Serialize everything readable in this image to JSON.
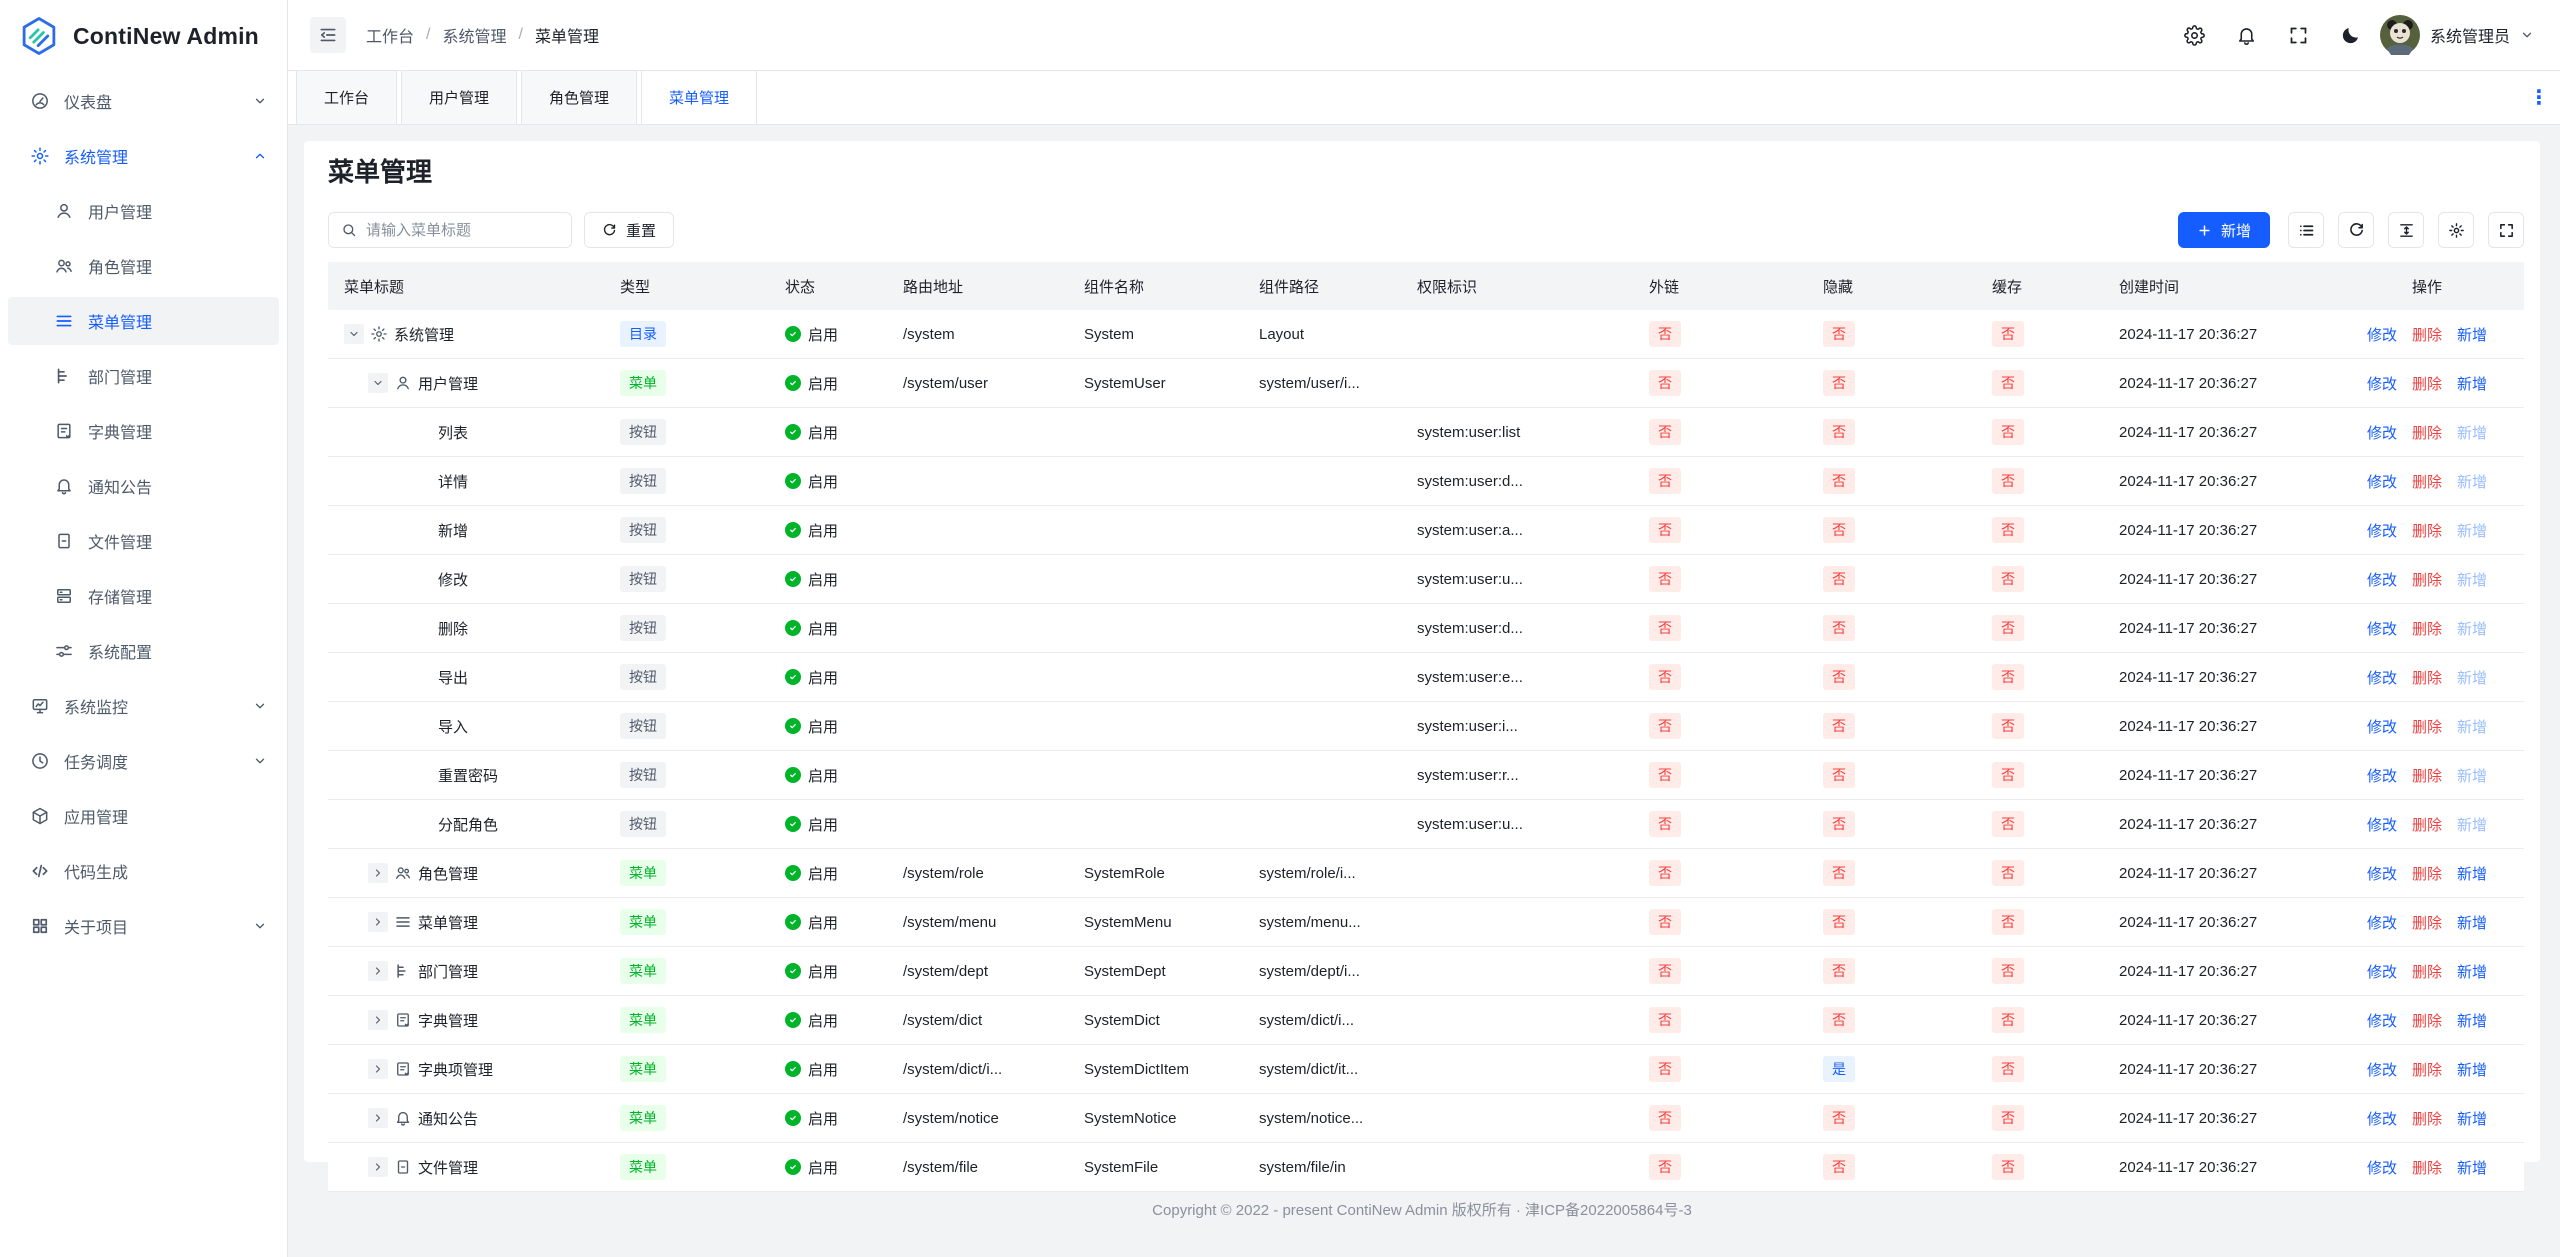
{
  "colors": {
    "primary": "#165dff",
    "danger": "#f53f3f",
    "success": "#00b42a"
  },
  "app": {
    "title": "ContiNew Admin",
    "logo_icon": "hexagon-logo-icon"
  },
  "sidebar": {
    "items": [
      {
        "label": "仪表盘",
        "icon": "dashboard-icon",
        "level": "top",
        "chevron": "down"
      },
      {
        "label": "系统管理",
        "icon": "gear-icon",
        "level": "top",
        "chevron": "up",
        "active": true
      },
      {
        "label": "用户管理",
        "icon": "user-icon",
        "level": "sub"
      },
      {
        "label": "角色管理",
        "icon": "users-icon",
        "level": "sub"
      },
      {
        "label": "菜单管理",
        "icon": "menu-list-icon",
        "level": "sub",
        "selected": true
      },
      {
        "label": "部门管理",
        "icon": "tree-icon",
        "level": "sub"
      },
      {
        "label": "字典管理",
        "icon": "dict-icon",
        "level": "sub"
      },
      {
        "label": "通知公告",
        "icon": "bell-icon",
        "level": "sub"
      },
      {
        "label": "文件管理",
        "icon": "file-icon",
        "level": "sub"
      },
      {
        "label": "存储管理",
        "icon": "storage-icon",
        "level": "sub"
      },
      {
        "label": "系统配置",
        "icon": "sliders-icon",
        "level": "sub"
      },
      {
        "label": "系统监控",
        "icon": "monitor-icon",
        "level": "top",
        "chevron": "down"
      },
      {
        "label": "任务调度",
        "icon": "clock-icon",
        "level": "top",
        "chevron": "down"
      },
      {
        "label": "应用管理",
        "icon": "cube-icon",
        "level": "top"
      },
      {
        "label": "代码生成",
        "icon": "code-icon",
        "level": "top"
      },
      {
        "label": "关于项目",
        "icon": "apps-icon",
        "level": "top",
        "chevron": "down"
      }
    ]
  },
  "header": {
    "breadcrumb": [
      "工作台",
      "系统管理",
      "菜单管理"
    ],
    "breadcrumb_separator": "/",
    "icons": [
      "settings-icon",
      "notification-bell-icon",
      "fullscreen-icon",
      "dark-mode-moon-icon"
    ],
    "user_name": "系统管理员"
  },
  "tabbar": {
    "tabs": [
      {
        "label": "工作台"
      },
      {
        "label": "用户管理"
      },
      {
        "label": "角色管理"
      },
      {
        "label": "菜单管理",
        "active": true
      }
    ],
    "more_icon": "⋮"
  },
  "page": {
    "title": "菜单管理",
    "search_placeholder": "请输入菜单标题",
    "reset_label": "重置",
    "add_label": "新增",
    "tool_icons": [
      "list-icon",
      "refresh-icon",
      "row-height-icon",
      "settings-icon",
      "fullscreen-icon"
    ]
  },
  "table": {
    "columns": [
      "菜单标题",
      "类型",
      "状态",
      "路由地址",
      "组件名称",
      "组件路径",
      "权限标识",
      "外链",
      "隐藏",
      "缓存",
      "创建时间",
      "操作"
    ],
    "status_label": "启用",
    "action_labels": [
      "修改",
      "删除",
      "新增"
    ],
    "rows": [
      {
        "title": "系统管理",
        "icon": "gear-icon",
        "level": 0,
        "expand": "down",
        "type": "目录",
        "route": "/system",
        "component_name": "System",
        "component_path": "Layout",
        "permission": "",
        "external": "否",
        "hidden": "否",
        "cache": "否",
        "created": "2024-11-17 20:36:27",
        "add_disabled": false
      },
      {
        "title": "用户管理",
        "icon": "user-icon",
        "level": 1,
        "expand": "down",
        "type": "菜单",
        "route": "/system/user",
        "component_name": "SystemUser",
        "component_path": "system/user/i...",
        "permission": "",
        "external": "否",
        "hidden": "否",
        "cache": "否",
        "created": "2024-11-17 20:36:27",
        "add_disabled": false
      },
      {
        "title": "列表",
        "icon": "",
        "level": 2,
        "expand": "",
        "type": "按钮",
        "route": "",
        "component_name": "",
        "component_path": "",
        "permission": "system:user:list",
        "external": "否",
        "hidden": "否",
        "cache": "否",
        "created": "2024-11-17 20:36:27",
        "add_disabled": true
      },
      {
        "title": "详情",
        "icon": "",
        "level": 2,
        "expand": "",
        "type": "按钮",
        "route": "",
        "component_name": "",
        "component_path": "",
        "permission": "system:user:d...",
        "external": "否",
        "hidden": "否",
        "cache": "否",
        "created": "2024-11-17 20:36:27",
        "add_disabled": true
      },
      {
        "title": "新增",
        "icon": "",
        "level": 2,
        "expand": "",
        "type": "按钮",
        "route": "",
        "component_name": "",
        "component_path": "",
        "permission": "system:user:a...",
        "external": "否",
        "hidden": "否",
        "cache": "否",
        "created": "2024-11-17 20:36:27",
        "add_disabled": true
      },
      {
        "title": "修改",
        "icon": "",
        "level": 2,
        "expand": "",
        "type": "按钮",
        "route": "",
        "component_name": "",
        "component_path": "",
        "permission": "system:user:u...",
        "external": "否",
        "hidden": "否",
        "cache": "否",
        "created": "2024-11-17 20:36:27",
        "add_disabled": true
      },
      {
        "title": "删除",
        "icon": "",
        "level": 2,
        "expand": "",
        "type": "按钮",
        "route": "",
        "component_name": "",
        "component_path": "",
        "permission": "system:user:d...",
        "external": "否",
        "hidden": "否",
        "cache": "否",
        "created": "2024-11-17 20:36:27",
        "add_disabled": true
      },
      {
        "title": "导出",
        "icon": "",
        "level": 2,
        "expand": "",
        "type": "按钮",
        "route": "",
        "component_name": "",
        "component_path": "",
        "permission": "system:user:e...",
        "external": "否",
        "hidden": "否",
        "cache": "否",
        "created": "2024-11-17 20:36:27",
        "add_disabled": true
      },
      {
        "title": "导入",
        "icon": "",
        "level": 2,
        "expand": "",
        "type": "按钮",
        "route": "",
        "component_name": "",
        "component_path": "",
        "permission": "system:user:i...",
        "external": "否",
        "hidden": "否",
        "cache": "否",
        "created": "2024-11-17 20:36:27",
        "add_disabled": true
      },
      {
        "title": "重置密码",
        "icon": "",
        "level": 2,
        "expand": "",
        "type": "按钮",
        "route": "",
        "component_name": "",
        "component_path": "",
        "permission": "system:user:r...",
        "external": "否",
        "hidden": "否",
        "cache": "否",
        "created": "2024-11-17 20:36:27",
        "add_disabled": true
      },
      {
        "title": "分配角色",
        "icon": "",
        "level": 2,
        "expand": "",
        "type": "按钮",
        "route": "",
        "component_name": "",
        "component_path": "",
        "permission": "system:user:u...",
        "external": "否",
        "hidden": "否",
        "cache": "否",
        "created": "2024-11-17 20:36:27",
        "add_disabled": true
      },
      {
        "title": "角色管理",
        "icon": "users-icon",
        "level": 1,
        "expand": "right",
        "type": "菜单",
        "route": "/system/role",
        "component_name": "SystemRole",
        "component_path": "system/role/i...",
        "permission": "",
        "external": "否",
        "hidden": "否",
        "cache": "否",
        "created": "2024-11-17 20:36:27",
        "add_disabled": false
      },
      {
        "title": "菜单管理",
        "icon": "menu-list-icon",
        "level": 1,
        "expand": "right",
        "type": "菜单",
        "route": "/system/menu",
        "component_name": "SystemMenu",
        "component_path": "system/menu...",
        "permission": "",
        "external": "否",
        "hidden": "否",
        "cache": "否",
        "created": "2024-11-17 20:36:27",
        "add_disabled": false
      },
      {
        "title": "部门管理",
        "icon": "tree-icon",
        "level": 1,
        "expand": "right",
        "type": "菜单",
        "route": "/system/dept",
        "component_name": "SystemDept",
        "component_path": "system/dept/i...",
        "permission": "",
        "external": "否",
        "hidden": "否",
        "cache": "否",
        "created": "2024-11-17 20:36:27",
        "add_disabled": false
      },
      {
        "title": "字典管理",
        "icon": "dict-icon",
        "level": 1,
        "expand": "right",
        "type": "菜单",
        "route": "/system/dict",
        "component_name": "SystemDict",
        "component_path": "system/dict/i...",
        "permission": "",
        "external": "否",
        "hidden": "否",
        "cache": "否",
        "created": "2024-11-17 20:36:27",
        "add_disabled": false
      },
      {
        "title": "字典项管理",
        "icon": "dict-icon",
        "level": 1,
        "expand": "right",
        "type": "菜单",
        "route": "/system/dict/i...",
        "component_name": "SystemDictItem",
        "component_path": "system/dict/it...",
        "permission": "",
        "external": "否",
        "hidden": "是",
        "cache": "否",
        "created": "2024-11-17 20:36:27",
        "add_disabled": false
      },
      {
        "title": "通知公告",
        "icon": "bell-icon",
        "level": 1,
        "expand": "right",
        "type": "菜单",
        "route": "/system/notice",
        "component_name": "SystemNotice",
        "component_path": "system/notice...",
        "permission": "",
        "external": "否",
        "hidden": "否",
        "cache": "否",
        "created": "2024-11-17 20:36:27",
        "add_disabled": false
      },
      {
        "title": "文件管理",
        "icon": "file-icon",
        "level": 1,
        "expand": "right",
        "type": "菜单",
        "route": "/system/file",
        "component_name": "SystemFile",
        "component_path": "system/file/in",
        "permission": "",
        "external": "否",
        "hidden": "否",
        "cache": "否",
        "created": "2024-11-17 20:36:27",
        "add_disabled": false
      }
    ]
  },
  "footer": {
    "copyright": "Copyright © 2022 - present ContiNew Admin 版权所有 · 津ICP备2022005864号-3"
  }
}
